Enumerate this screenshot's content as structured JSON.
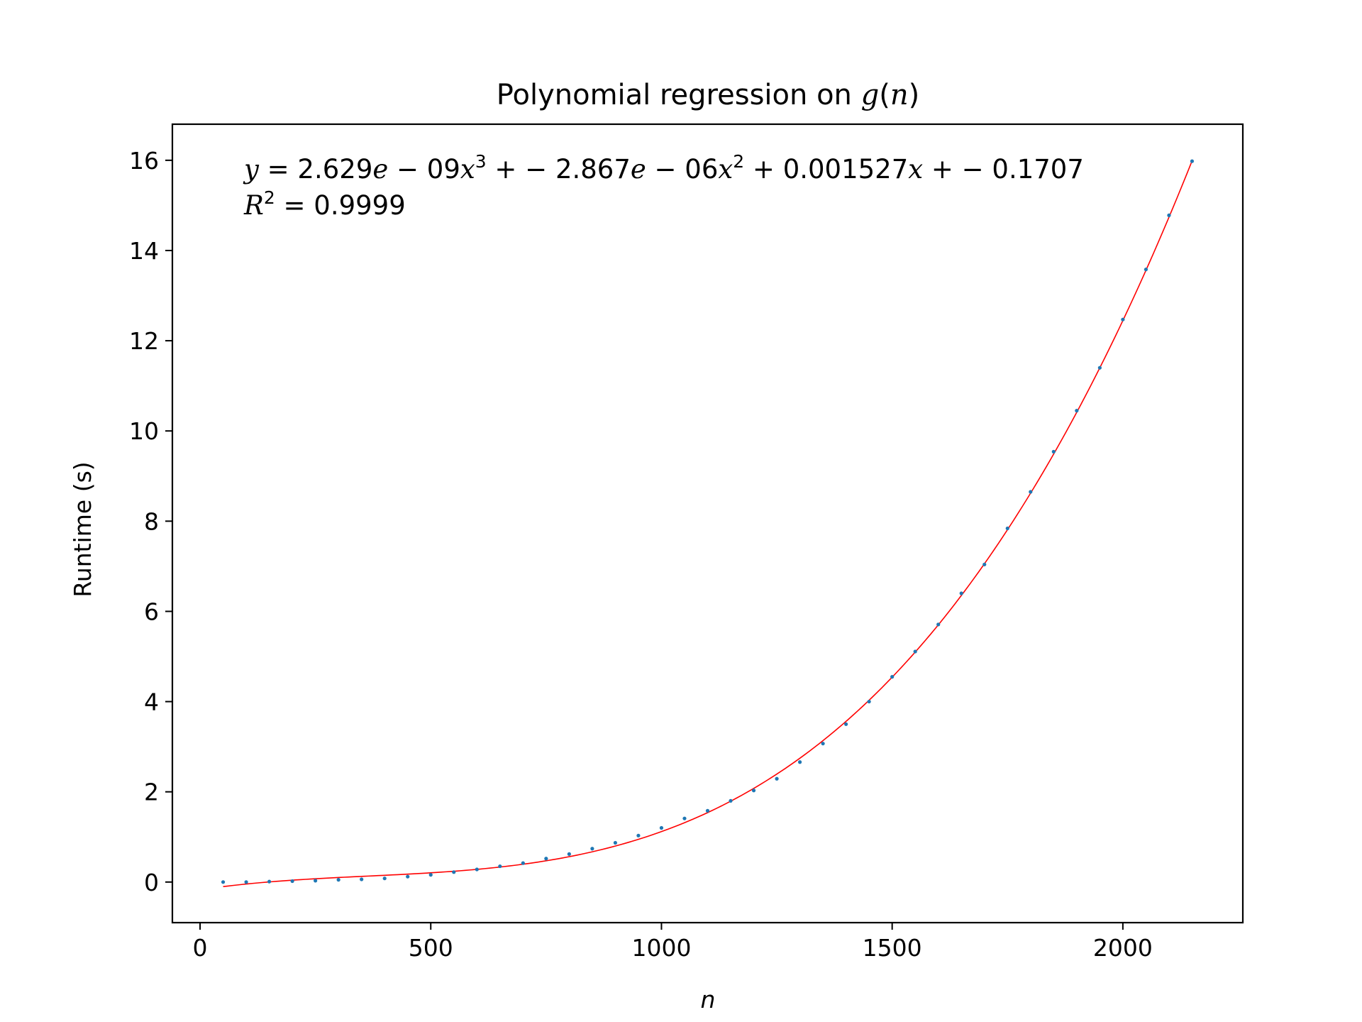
{
  "chart_data": {
    "type": "scatter",
    "title": "Polynomial regression on g(n)",
    "title_parts": {
      "text": "Polynomial regression on ",
      "func": "g",
      "open": "(",
      "var": "n",
      "close": ")"
    },
    "xlabel": "n",
    "ylabel": "Runtime (s)",
    "xlim": [
      -60,
      2260
    ],
    "ylim": [
      -0.9,
      16.8
    ],
    "xticks": [
      0,
      500,
      1000,
      1500,
      2000
    ],
    "yticks": [
      0,
      2,
      4,
      6,
      8,
      10,
      12,
      14,
      16
    ],
    "grid": false,
    "series": [
      {
        "kind": "scatter",
        "color": "#1f77b4",
        "x": [
          50,
          100,
          150,
          200,
          250,
          300,
          350,
          400,
          450,
          500,
          550,
          600,
          650,
          700,
          750,
          800,
          850,
          900,
          950,
          1000,
          1050,
          1100,
          1150,
          1200,
          1250,
          1300,
          1350,
          1400,
          1450,
          1500,
          1550,
          1600,
          1650,
          1700,
          1750,
          1800,
          1850,
          1900,
          1950,
          2000,
          2050,
          2100,
          2150
        ],
        "y": [
          0.0,
          0.0,
          0.01,
          0.02,
          0.03,
          0.05,
          0.06,
          0.08,
          0.12,
          0.16,
          0.22,
          0.28,
          0.35,
          0.42,
          0.52,
          0.62,
          0.74,
          0.87,
          1.03,
          1.2,
          1.41,
          1.58,
          1.8,
          2.03,
          2.29,
          2.66,
          3.07,
          3.5,
          4.0,
          4.55,
          5.11,
          5.71,
          6.4,
          7.04,
          7.84,
          8.65,
          9.54,
          10.45,
          11.4,
          12.47,
          13.58,
          14.78,
          15.98
        ]
      },
      {
        "kind": "fit",
        "color": "#ff0000",
        "coefficients": [
          2.629e-09,
          -2.867e-06,
          0.001527,
          -0.1707
        ],
        "x_range": [
          50,
          2150
        ]
      }
    ],
    "annotation": {
      "equation": {
        "y": "y",
        "eq": " = 2.629",
        "e1": "e",
        "m1": " − 09",
        "x1": "x",
        "p1": "3",
        "s1": " + − 2.867",
        "e2": "e",
        "m2": " − 06",
        "x2": "x",
        "p2": "2",
        "s2": " + 0.001527",
        "x3": "x",
        "s3": " + − 0.1707"
      },
      "r2": {
        "r": "R",
        "p": "2",
        "value": " = 0.9999"
      }
    }
  }
}
